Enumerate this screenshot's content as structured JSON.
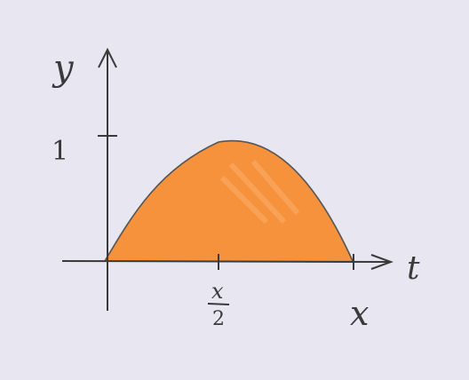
{
  "labels": {
    "y_axis": "y",
    "t_axis": "t",
    "y_tick": "1",
    "x_mid_num": "x",
    "x_mid_den": "2",
    "x_end": "x"
  },
  "colors": {
    "background": "#e7e6f1",
    "fill": "#f7923c",
    "ink": "#3a3a3a"
  }
}
